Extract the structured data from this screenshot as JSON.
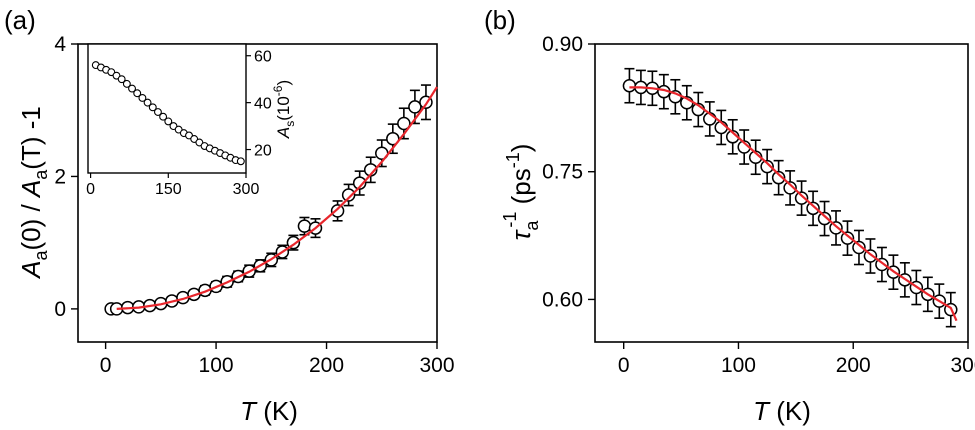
{
  "figure": {
    "colors": {
      "axis": "#000000",
      "fit": "#e8262c",
      "marker_stroke": "#000000",
      "marker_fill": "#ffffff"
    }
  },
  "chart_data": [
    {
      "id": "a",
      "type": "scatter",
      "panel_label": "(a)",
      "xlabel": {
        "var": "T",
        "unit": " (K)"
      },
      "ylabel": {
        "parts": [
          {
            "t": "A",
            "style": "italic"
          },
          {
            "t": "a",
            "style": "sub"
          },
          {
            "t": "(0) / ",
            "style": "normal"
          },
          {
            "t": "A",
            "style": "italic"
          },
          {
            "t": "a",
            "style": "sub"
          },
          {
            "t": "(T) -1",
            "style": "normal"
          }
        ]
      },
      "xlim": [
        -25,
        300
      ],
      "ylim": [
        -0.5,
        4
      ],
      "xticks": [
        0,
        100,
        200,
        300
      ],
      "yticks": [
        0,
        2,
        4
      ],
      "grid": false,
      "series": [
        {
          "kind": "data",
          "marker": "open-circle",
          "x": [
            5,
            10,
            20,
            30,
            40,
            50,
            60,
            70,
            80,
            90,
            100,
            110,
            120,
            130,
            140,
            150,
            160,
            170,
            180,
            190,
            210,
            220,
            230,
            240,
            250,
            260,
            270,
            280,
            290
          ],
          "y": [
            0.0,
            0.0,
            0.02,
            0.03,
            0.05,
            0.08,
            0.12,
            0.17,
            0.22,
            0.28,
            0.34,
            0.41,
            0.49,
            0.57,
            0.65,
            0.74,
            0.86,
            1.0,
            1.25,
            1.22,
            1.48,
            1.72,
            1.9,
            2.1,
            2.35,
            2.57,
            2.8,
            3.05,
            3.12
          ],
          "yerr": [
            0.05,
            0.05,
            0.05,
            0.05,
            0.05,
            0.05,
            0.06,
            0.06,
            0.06,
            0.07,
            0.07,
            0.08,
            0.08,
            0.09,
            0.09,
            0.1,
            0.1,
            0.11,
            0.13,
            0.14,
            0.15,
            0.16,
            0.18,
            0.19,
            0.2,
            0.22,
            0.23,
            0.25,
            0.26
          ]
        },
        {
          "kind": "fit",
          "x": [
            10,
            30,
            50,
            70,
            90,
            110,
            130,
            150,
            170,
            190,
            210,
            230,
            250,
            270,
            290,
            300
          ],
          "y": [
            0.0,
            0.02,
            0.07,
            0.15,
            0.26,
            0.4,
            0.56,
            0.75,
            0.97,
            1.22,
            1.51,
            1.84,
            2.22,
            2.64,
            3.09,
            3.35
          ]
        }
      ],
      "inset": {
        "type": "scatter",
        "xlim": [
          -5,
          300
        ],
        "ylim": [
          10,
          65
        ],
        "xticks": [
          0,
          150,
          300
        ],
        "yticks": [
          20,
          40,
          60
        ],
        "ylabel": {
          "main": "A",
          "sub": "s",
          "unit_pre": "(10",
          "exp": "-6",
          "unit_post": ")"
        },
        "x": [
          10,
          20,
          30,
          40,
          50,
          60,
          70,
          80,
          90,
          100,
          110,
          120,
          130,
          140,
          150,
          160,
          170,
          180,
          190,
          200,
          210,
          220,
          230,
          240,
          250,
          260,
          270,
          280,
          290
        ],
        "y": [
          56.0,
          55.0,
          54.0,
          53.0,
          51.5,
          50.0,
          48.0,
          46.0,
          44.0,
          42.0,
          40.0,
          38.0,
          36.0,
          34.0,
          32.0,
          30.0,
          28.5,
          27.0,
          26.0,
          24.5,
          23.0,
          21.5,
          20.5,
          19.5,
          18.5,
          17.5,
          16.5,
          15.5,
          15.0
        ]
      }
    },
    {
      "id": "b",
      "type": "scatter",
      "panel_label": "(b)",
      "xlabel": {
        "var": "T",
        "unit": " (K)"
      },
      "ylabel": {
        "main": "τ",
        "sub": "a",
        "exp": "-1",
        "unit": " (ps",
        "unit_exp": "-1",
        "unit_close": ")"
      },
      "xlim": [
        -25,
        300
      ],
      "ylim": [
        0.55,
        0.9
      ],
      "xticks": [
        0,
        100,
        200,
        300
      ],
      "yticks": [
        0.6,
        0.75,
        0.9
      ],
      "ytick_labels": [
        "0.60",
        "0.75",
        "0.90"
      ],
      "grid": false,
      "series": [
        {
          "kind": "data",
          "marker": "open-circle",
          "x": [
            5,
            15,
            25,
            35,
            45,
            55,
            65,
            75,
            85,
            95,
            105,
            115,
            125,
            135,
            145,
            155,
            165,
            175,
            185,
            195,
            205,
            215,
            225,
            235,
            245,
            255,
            265,
            275,
            285
          ],
          "y": [
            0.851,
            0.849,
            0.848,
            0.844,
            0.838,
            0.831,
            0.823,
            0.812,
            0.802,
            0.791,
            0.779,
            0.767,
            0.756,
            0.743,
            0.731,
            0.719,
            0.707,
            0.695,
            0.684,
            0.672,
            0.661,
            0.651,
            0.641,
            0.632,
            0.623,
            0.614,
            0.606,
            0.598,
            0.588
          ],
          "yerr": [
            0.02,
            0.02,
            0.02,
            0.02,
            0.02,
            0.02,
            0.02,
            0.02,
            0.02,
            0.02,
            0.02,
            0.02,
            0.02,
            0.02,
            0.02,
            0.02,
            0.02,
            0.02,
            0.02,
            0.02,
            0.02,
            0.02,
            0.02,
            0.02,
            0.02,
            0.02,
            0.02,
            0.02,
            0.02
          ]
        },
        {
          "kind": "fit",
          "x": [
            5,
            15,
            25,
            35,
            45,
            55,
            65,
            75,
            85,
            95,
            105,
            115,
            125,
            135,
            145,
            155,
            165,
            175,
            185,
            195,
            205,
            215,
            225,
            235,
            245,
            255,
            265,
            275,
            285,
            290
          ],
          "y": [
            0.849,
            0.849,
            0.848,
            0.846,
            0.842,
            0.836,
            0.828,
            0.818,
            0.808,
            0.796,
            0.784,
            0.772,
            0.76,
            0.747,
            0.735,
            0.722,
            0.71,
            0.698,
            0.686,
            0.675,
            0.664,
            0.653,
            0.643,
            0.633,
            0.624,
            0.615,
            0.606,
            0.598,
            0.59,
            0.575
          ]
        }
      ]
    }
  ]
}
